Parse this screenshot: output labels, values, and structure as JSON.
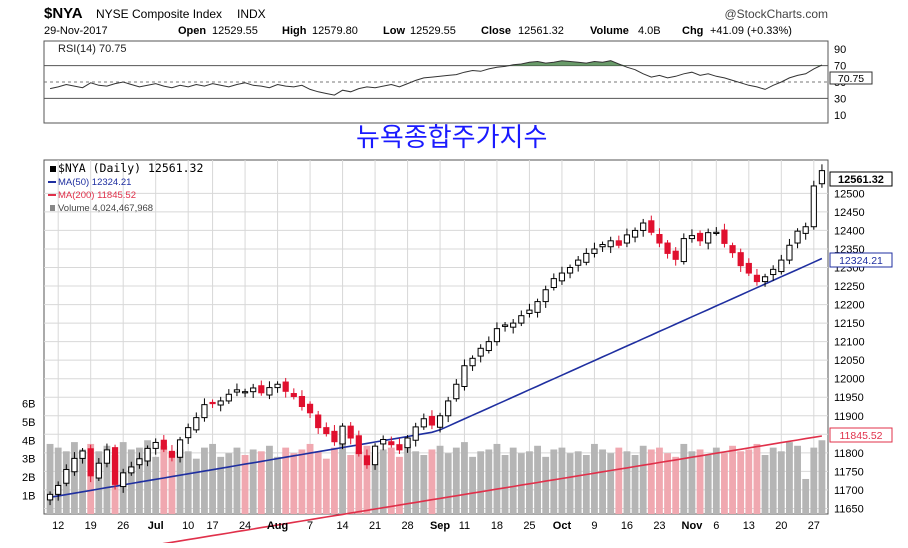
{
  "header": {
    "symbol": "$NYA",
    "name": "NYSE Composite Index",
    "exchange": "INDX",
    "date": "29-Nov-2017",
    "brand": "@StockCharts.com",
    "quote": {
      "open_label": "Open",
      "open": "12529.55",
      "high_label": "High",
      "high": "12579.80",
      "low_label": "Low",
      "low": "12529.55",
      "close_label": "Close",
      "close": "12561.32",
      "volume_label": "Volume",
      "volume": "4.0B",
      "chg_label": "Chg",
      "chg": "+41.09 (+0.33%)"
    }
  },
  "annotation": "뉴욕종합주가지수",
  "rsi_panel": {
    "label": "RSI(14) 70.75",
    "current": 70.75,
    "current_label": "70.75",
    "ticks": [
      "90",
      "70",
      "50",
      "30",
      "10"
    ],
    "tick_values": [
      90,
      70,
      50,
      30,
      10
    ]
  },
  "legend": {
    "price": "$NYA (Daily) 12561.32",
    "ma50": "MA(50) 12324.21",
    "ma200": "MA(200) 11845.52",
    "volume": "Volume 4,024,467,968"
  },
  "price_labels": {
    "close": "12561.32",
    "ma50": "12324.21",
    "ma200": "11845.52"
  },
  "colors": {
    "up": "#000000",
    "down": "#e0102e",
    "ma50": "#1f2fa0",
    "ma200": "#e0304a",
    "volume_up": "#b5b5b5",
    "volume_down": "#f0a8b0",
    "rsi_fill": "#4f8a4f",
    "grid": "#d8d8d8"
  },
  "chart_data": {
    "type": "candlestick",
    "x_tick_labels": [
      "12",
      "19",
      "26",
      "Jul",
      "10",
      "17",
      "24",
      "Aug",
      "7",
      "14",
      "21",
      "28",
      "Sep",
      "11",
      "18",
      "25",
      "Oct",
      "9",
      "16",
      "23",
      "Nov",
      "6",
      "13",
      "20",
      "27"
    ],
    "y_ticks": [
      11650,
      11700,
      11750,
      11800,
      11850,
      11900,
      11950,
      12000,
      12050,
      12100,
      12150,
      12200,
      12250,
      12300,
      12350,
      12400,
      12450,
      12500
    ],
    "ylim": [
      11635,
      12590
    ],
    "volume_tick_labels": [
      "1B",
      "2B",
      "3B",
      "4B",
      "5B",
      "6B"
    ],
    "volume_ylim_billions": [
      0,
      6.4
    ],
    "ma50_start": 11680,
    "ma50_end": 12324.21,
    "ma200_start": 11505,
    "ma200_end": 11845.52,
    "closes": [
      11688,
      11712,
      11755,
      11785,
      11805,
      11738,
      11772,
      11808,
      11715,
      11746,
      11762,
      11784,
      11812,
      11828,
      11810,
      11788,
      11835,
      11868,
      11895,
      11930,
      11935,
      11940,
      11958,
      11970,
      11965,
      11975,
      11962,
      11976,
      11985,
      11966,
      11952,
      11925,
      11908,
      11868,
      11852,
      11830,
      11872,
      11840,
      11798,
      11768,
      11818,
      11836,
      11822,
      11808,
      11840,
      11870,
      11892,
      11875,
      11900,
      11940,
      11985,
      12035,
      12055,
      12082,
      12100,
      12135,
      12145,
      12150,
      12170,
      12185,
      12208,
      12240,
      12270,
      12285,
      12300,
      12320,
      12338,
      12350,
      12362,
      12372,
      12360,
      12388,
      12400,
      12420,
      12395,
      12366,
      12338,
      12322,
      12378,
      12386,
      12372,
      12394,
      12395,
      12365,
      12340,
      12305,
      12285,
      12262,
      12275,
      12295,
      12320,
      12360,
      12398,
      12410,
      12520,
      12561.32
    ],
    "volumes_billions": [
      3.8,
      3.6,
      3.4,
      3.9,
      3.5,
      3.8,
      3.4,
      3.7,
      3.2,
      3.9,
      3.5,
      3.6,
      4.0,
      3.1,
      3.7,
      3.3,
      3.5,
      3.4,
      3.0,
      3.6,
      3.8,
      3.1,
      3.3,
      3.6,
      3.2,
      3.5,
      3.4,
      3.7,
      3.1,
      3.6,
      3.3,
      3.5,
      3.8,
      3.4,
      3.0,
      3.6,
      3.9,
      3.2,
      3.4,
      3.7,
      3.3,
      3.5,
      3.6,
      3.1,
      3.8,
      3.4,
      3.2,
      3.5,
      3.7,
      3.3,
      3.6,
      3.9,
      3.1,
      3.4,
      3.5,
      3.8,
      3.2,
      3.6,
      3.3,
      3.4,
      3.7,
      3.1,
      3.5,
      3.6,
      3.3,
      3.4,
      3.2,
      3.8,
      3.5,
      3.3,
      3.6,
      3.4,
      3.2,
      3.7,
      3.5,
      3.6,
      3.3,
      3.1,
      3.8,
      3.4,
      3.5,
      3.2,
      3.6,
      3.3,
      3.7,
      3.4,
      3.5,
      3.8,
      3.2,
      3.6,
      3.4,
      3.9,
      3.7,
      1.9,
      3.6,
      4.0
    ],
    "rsi": [
      42,
      44,
      47,
      45,
      43,
      49,
      46,
      45,
      48,
      50,
      47,
      44,
      46,
      48,
      45,
      43,
      46,
      44,
      47,
      45,
      48,
      46,
      44,
      47,
      49,
      46,
      45,
      43,
      47,
      45,
      44,
      46,
      41,
      38,
      36,
      34,
      40,
      38,
      42,
      44,
      43,
      45,
      47,
      44,
      48,
      52,
      55,
      56,
      57,
      58,
      59,
      62,
      64,
      63,
      66,
      68,
      69,
      71,
      72,
      74,
      75,
      73,
      74,
      76,
      75,
      74,
      73,
      75,
      74,
      76,
      72,
      68,
      65,
      60,
      56,
      58,
      55,
      57,
      60,
      62,
      58,
      60,
      57,
      55,
      52,
      49,
      46,
      44,
      41,
      46,
      50,
      55,
      58,
      60,
      66,
      70.75
    ]
  }
}
